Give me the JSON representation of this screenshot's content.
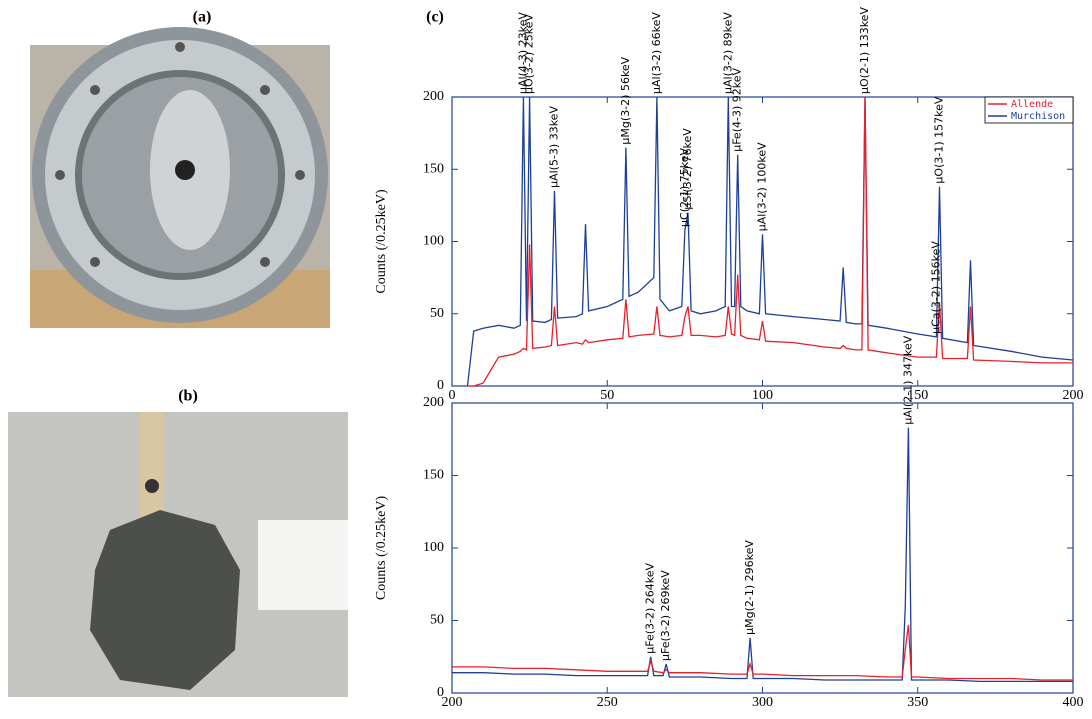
{
  "figure": {
    "labels": [
      "(a)",
      "(b)",
      "(c)"
    ]
  },
  "chart_data": [
    {
      "type": "line",
      "y_label": "Counts (/0.25keV)",
      "x": [
        5,
        7,
        10,
        15,
        20,
        22,
        23,
        24,
        25,
        26,
        30,
        32,
        33,
        34,
        40,
        42,
        43,
        44,
        50,
        55,
        56,
        57,
        60,
        65,
        66,
        67,
        70,
        74,
        75,
        76,
        77,
        80,
        85,
        88,
        89,
        90,
        91,
        92,
        93,
        95,
        99,
        100,
        101,
        110,
        120,
        125,
        126,
        127,
        130,
        132,
        133,
        134,
        140,
        150,
        156,
        157,
        158,
        166,
        167,
        168,
        180,
        190,
        200
      ],
      "series": [
        {
          "name": "Murchison",
          "color": "#1c3f9a",
          "values": [
            0,
            38,
            40,
            42,
            40,
            42,
            200,
            45,
            200,
            45,
            44,
            46,
            135,
            47,
            48,
            50,
            112,
            52,
            55,
            60,
            165,
            62,
            65,
            75,
            200,
            60,
            52,
            55,
            108,
            120,
            52,
            50,
            52,
            55,
            200,
            55,
            55,
            160,
            55,
            52,
            50,
            105,
            50,
            48,
            46,
            45,
            82,
            44,
            43,
            43,
            200,
            42,
            40,
            36,
            34,
            138,
            33,
            30,
            87,
            28,
            24,
            20,
            18
          ]
        },
        {
          "name": "Allende",
          "color": "#e8202a",
          "values": [
            0,
            0,
            2,
            20,
            22,
            24,
            26,
            25,
            98,
            26,
            27,
            28,
            55,
            28,
            30,
            29,
            32,
            30,
            32,
            33,
            60,
            34,
            35,
            36,
            55,
            35,
            34,
            35,
            48,
            55,
            35,
            35,
            34,
            35,
            55,
            36,
            35,
            77,
            35,
            33,
            32,
            45,
            31,
            30,
            27,
            26,
            28,
            26,
            25,
            25,
            200,
            25,
            23,
            20,
            20,
            58,
            19,
            19,
            55,
            18,
            17,
            16,
            16
          ]
        }
      ],
      "xlim": [
        0,
        200
      ],
      "xticks": [
        0,
        50,
        100,
        150,
        200
      ],
      "ylim": [
        0,
        200
      ],
      "yticks": [
        0,
        50,
        100,
        150,
        200
      ],
      "legend": "upper right",
      "annotations": [
        {
          "x": 23,
          "text": "μAl(4-3) 23keV"
        },
        {
          "x": 25,
          "text": "μO(3-2) 25keV"
        },
        {
          "x": 33,
          "text": "μAl(5-3) 33keV"
        },
        {
          "x": 56,
          "text": "μMg(3-2) 56keV"
        },
        {
          "x": 66,
          "text": "μAl(3-2) 66keV"
        },
        {
          "x": 75,
          "text": "μC(2-1) 75keV"
        },
        {
          "x": 76,
          "text": "μSi(3-2) 76keV"
        },
        {
          "x": 89,
          "text": "μAl(3-2) 89keV"
        },
        {
          "x": 92,
          "text": "μFe(4-3) 92keV"
        },
        {
          "x": 100,
          "text": "μAl(3-2) 100keV"
        },
        {
          "x": 133,
          "text": "μO(2-1) 133keV"
        },
        {
          "x": 156,
          "text": "μCa(3-2) 156keV"
        },
        {
          "x": 157,
          "text": "μO(3-1) 157keV"
        }
      ]
    },
    {
      "type": "line",
      "y_label": "Counts (/0.25keV)",
      "x": [
        200,
        210,
        220,
        230,
        240,
        250,
        260,
        263,
        264,
        265,
        268,
        269,
        270,
        280,
        290,
        295,
        296,
        297,
        300,
        310,
        320,
        330,
        340,
        345,
        346,
        347,
        348,
        350,
        360,
        370,
        380,
        390,
        400
      ],
      "series": [
        {
          "name": "Murchison",
          "color": "#1c3f9a",
          "values": [
            14,
            14,
            13,
            13,
            12,
            12,
            12,
            12,
            25,
            12,
            12,
            20,
            11,
            11,
            10,
            10,
            38,
            10,
            10,
            10,
            9,
            9,
            9,
            9,
            60,
            183,
            9,
            9,
            9,
            8,
            8,
            8,
            8
          ]
        },
        {
          "name": "Allende",
          "color": "#e8202a",
          "values": [
            18,
            18,
            17,
            17,
            16,
            15,
            15,
            15,
            22,
            15,
            14,
            16,
            14,
            14,
            13,
            13,
            20,
            13,
            13,
            12,
            12,
            12,
            11,
            11,
            30,
            47,
            11,
            11,
            10,
            10,
            10,
            9,
            9
          ]
        }
      ],
      "xlim": [
        200,
        400
      ],
      "xticks": [
        200,
        250,
        300,
        350,
        400
      ],
      "ylim": [
        0,
        200
      ],
      "yticks": [
        0,
        50,
        100,
        150,
        200
      ],
      "annotations": [
        {
          "x": 264,
          "text": "μFe(3-2) 264keV"
        },
        {
          "x": 269,
          "text": "μFe(3-2) 269keV"
        },
        {
          "x": 296,
          "text": "μMg(2-1) 296keV"
        },
        {
          "x": 347,
          "text": "μAl(2-1) 347keV"
        }
      ]
    }
  ]
}
